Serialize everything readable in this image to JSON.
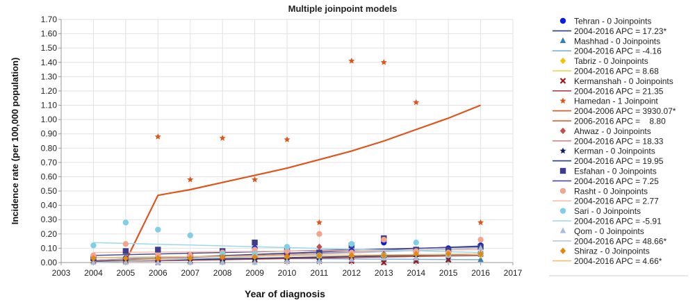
{
  "chart_data": {
    "type": "scatter",
    "title": "Multiple joinpoint models",
    "xlabel": "Year of diagnosis",
    "ylabel": "Incidence rate (per 100,000 population)",
    "xlim": [
      2003,
      2017
    ],
    "ylim": [
      0,
      1.7
    ],
    "x_ticks": [
      2003,
      2004,
      2005,
      2006,
      2007,
      2008,
      2009,
      2010,
      2011,
      2012,
      2013,
      2014,
      2015,
      2016,
      2017
    ],
    "y_ticks": [
      "0.00",
      "0.10",
      "0.20",
      "0.30",
      "0.40",
      "0.50",
      "0.60",
      "0.70",
      "0.80",
      "0.90",
      "1.00",
      "1.10",
      "1.20",
      "1.30",
      "1.40",
      "1.50",
      "1.60",
      "1.70"
    ],
    "grid": true,
    "legend_position": "right",
    "series": [
      {
        "name": "Tehran - 0 Joinpoints",
        "marker": "circle",
        "color": "#0a1fd6",
        "points": [
          [
            2004,
            0.02
          ],
          [
            2005,
            0.03
          ],
          [
            2006,
            0.03
          ],
          [
            2007,
            0.04
          ],
          [
            2008,
            0.05
          ],
          [
            2009,
            0.1
          ],
          [
            2010,
            0.06
          ],
          [
            2011,
            0.07
          ],
          [
            2012,
            0.08
          ],
          [
            2013,
            0.14
          ],
          [
            2014,
            0.09
          ],
          [
            2015,
            0.1
          ],
          [
            2016,
            0.12
          ]
        ],
        "fit": {
          "label": "2004-2016 APC = 17.23*",
          "color": "#2c3a8c",
          "segments": [
            [
              [
                2004,
                0.015
              ],
              [
                2016,
                0.115
              ]
            ]
          ]
        }
      },
      {
        "name": "Mashhad - 0 Joinpoints",
        "marker": "triangle",
        "color": "#3a7fb0",
        "points": [
          [
            2004,
            0.04
          ],
          [
            2005,
            0.03
          ],
          [
            2006,
            0.03
          ],
          [
            2007,
            0.03
          ],
          [
            2008,
            0.02
          ],
          [
            2009,
            0.03
          ],
          [
            2010,
            0.02
          ],
          [
            2011,
            0.02
          ],
          [
            2012,
            0.02
          ],
          [
            2013,
            0.02
          ],
          [
            2014,
            0.02
          ],
          [
            2015,
            0.02
          ],
          [
            2016,
            0.02
          ]
        ],
        "fit": {
          "label": "2004-2016 APC = -4.16",
          "color": "#7fb0d6",
          "segments": [
            [
              [
                2004,
                0.035
              ],
              [
                2016,
                0.02
              ]
            ]
          ]
        }
      },
      {
        "name": "Tabriz - 0 Joinpoints",
        "marker": "diamond",
        "color": "#f2c400",
        "points": [
          [
            2004,
            0.01
          ],
          [
            2005,
            0.02
          ],
          [
            2006,
            0.02
          ],
          [
            2007,
            0.02
          ],
          [
            2008,
            0.03
          ],
          [
            2009,
            0.03
          ],
          [
            2010,
            0.03
          ],
          [
            2011,
            0.03
          ],
          [
            2012,
            0.04
          ],
          [
            2013,
            0.04
          ],
          [
            2014,
            0.05
          ],
          [
            2015,
            0.05
          ],
          [
            2016,
            0.05
          ]
        ],
        "fit": {
          "label": "2004-2016 APC = 8.68",
          "color": "#f2d040",
          "segments": [
            [
              [
                2004,
                0.015
              ],
              [
                2016,
                0.05
              ]
            ]
          ]
        }
      },
      {
        "name": "Kermanshah - 0 Joinpoints",
        "marker": "x",
        "color": "#a0161c",
        "points": [
          [
            2004,
            0.01
          ],
          [
            2005,
            0.01
          ],
          [
            2006,
            0.0
          ],
          [
            2007,
            0.01
          ],
          [
            2008,
            0.01
          ],
          [
            2009,
            0.02
          ],
          [
            2010,
            0.01
          ],
          [
            2011,
            0.01
          ],
          [
            2012,
            0.01
          ],
          [
            2013,
            0.0
          ],
          [
            2014,
            0.01
          ],
          [
            2015,
            0.02
          ],
          [
            2016,
            0.06
          ]
        ],
        "fit": {
          "label": "2004-2016 APC = 21.35",
          "color": "#b0404a",
          "segments": [
            [
              [
                2004,
                0.005
              ],
              [
                2016,
                0.05
              ]
            ]
          ]
        }
      },
      {
        "name": "Hamedan - 1 Joinpoint",
        "marker": "star",
        "color": "#e0541a",
        "points": [
          [
            2004,
            0.01
          ],
          [
            2005,
            0.01
          ],
          [
            2006,
            0.88
          ],
          [
            2007,
            0.58
          ],
          [
            2008,
            0.87
          ],
          [
            2009,
            0.58
          ],
          [
            2010,
            0.86
          ],
          [
            2011,
            0.28
          ],
          [
            2012,
            1.41
          ],
          [
            2013,
            1.4
          ],
          [
            2014,
            1.12
          ],
          [
            2016,
            0.28
          ]
        ],
        "fit": {
          "label": "2004-2006 APC = 3930.07*",
          "label2": "2006-2016 APC =    8.80",
          "color": "#e0541a",
          "segments": [
            [
              [
                2004,
                0.01
              ],
              [
                2005,
                0.01
              ],
              [
                2006,
                0.47
              ],
              [
                2007,
                0.51
              ],
              [
                2008,
                0.56
              ],
              [
                2009,
                0.61
              ],
              [
                2010,
                0.66
              ],
              [
                2011,
                0.72
              ],
              [
                2012,
                0.78
              ],
              [
                2013,
                0.85
              ],
              [
                2014,
                0.93
              ],
              [
                2015,
                1.01
              ],
              [
                2016,
                1.1
              ]
            ]
          ]
        }
      },
      {
        "name": "Ahwaz - 0 Joinpoints",
        "marker": "diamond",
        "color": "#c0504d",
        "points": [
          [
            2004,
            0.02
          ],
          [
            2005,
            0.01
          ],
          [
            2006,
            0.03
          ],
          [
            2007,
            0.03
          ],
          [
            2008,
            0.03
          ],
          [
            2009,
            0.04
          ],
          [
            2010,
            0.05
          ],
          [
            2011,
            0.11
          ],
          [
            2012,
            0.05
          ],
          [
            2013,
            0.06
          ],
          [
            2014,
            0.06
          ],
          [
            2015,
            0.07
          ],
          [
            2016,
            0.1
          ]
        ],
        "fit": {
          "label": "2004-2016 APC = 18.33",
          "color": "#c98a88",
          "segments": [
            [
              [
                2004,
                0.015
              ],
              [
                2016,
                0.1
              ]
            ]
          ]
        }
      },
      {
        "name": "Kerman - 0 Joinpoints",
        "marker": "star",
        "color": "#0d1a66",
        "points": [
          [
            2004,
            0.01
          ],
          [
            2005,
            0.01
          ],
          [
            2006,
            0.0
          ],
          [
            2007,
            0.01
          ],
          [
            2008,
            0.01
          ],
          [
            2009,
            0.02
          ],
          [
            2010,
            0.02
          ],
          [
            2011,
            0.02
          ],
          [
            2012,
            0.03
          ],
          [
            2013,
            0.03
          ],
          [
            2014,
            0.04
          ],
          [
            2015,
            0.04
          ],
          [
            2016,
            0.06
          ]
        ],
        "fit": {
          "label": "2004-2016 APC = 19.95",
          "color": "#2a3a7a",
          "segments": [
            [
              [
                2004,
                0.008
              ],
              [
                2016,
                0.06
              ]
            ]
          ]
        }
      },
      {
        "name": "Esfahan - 0 Joinpoints",
        "marker": "square",
        "color": "#3d3d8c",
        "points": [
          [
            2004,
            0.03
          ],
          [
            2005,
            0.08
          ],
          [
            2006,
            0.09
          ],
          [
            2007,
            0.05
          ],
          [
            2008,
            0.08
          ],
          [
            2009,
            0.14
          ],
          [
            2010,
            0.08
          ],
          [
            2011,
            0.07
          ],
          [
            2012,
            0.12
          ],
          [
            2013,
            0.17
          ],
          [
            2014,
            0.09
          ],
          [
            2015,
            0.09
          ],
          [
            2016,
            0.11
          ]
        ],
        "fit": {
          "label": "2004-2016 APC = 7.25",
          "color": "#4a4a9a",
          "segments": [
            [
              [
                2004,
                0.05
              ],
              [
                2016,
                0.11
              ]
            ]
          ]
        }
      },
      {
        "name": "Rasht - 0 Joinpoints",
        "marker": "circle",
        "color": "#f4a38c",
        "points": [
          [
            2004,
            0.05
          ],
          [
            2005,
            0.13
          ],
          [
            2006,
            0.05
          ],
          [
            2007,
            0.05
          ],
          [
            2008,
            0.07
          ],
          [
            2009,
            0.09
          ],
          [
            2010,
            0.08
          ],
          [
            2011,
            0.2
          ],
          [
            2012,
            0.07
          ],
          [
            2013,
            0.16
          ],
          [
            2014,
            0.08
          ],
          [
            2015,
            0.07
          ],
          [
            2016,
            0.16
          ]
        ],
        "fit": {
          "label": "2004-2016 APC = 2.77",
          "color": "#f7c0ad",
          "segments": [
            [
              [
                2004,
                0.07
              ],
              [
                2016,
                0.09
              ]
            ]
          ]
        }
      },
      {
        "name": "Sari - 0 Joinpoints",
        "marker": "circle",
        "color": "#7fd0e6",
        "points": [
          [
            2004,
            0.12
          ],
          [
            2005,
            0.28
          ],
          [
            2006,
            0.23
          ],
          [
            2007,
            0.19
          ],
          [
            2008,
            0.06
          ],
          [
            2009,
            0.06
          ],
          [
            2010,
            0.11
          ],
          [
            2011,
            0.05
          ],
          [
            2012,
            0.13
          ],
          [
            2013,
            0.05
          ],
          [
            2014,
            0.14
          ],
          [
            2015,
            0.05
          ],
          [
            2016,
            0.06
          ]
        ],
        "fit": {
          "label": "2004-2016 APC = -5.91",
          "color": "#9ad9eb",
          "segments": [
            [
              [
                2004,
                0.14
              ],
              [
                2016,
                0.07
              ]
            ]
          ]
        }
      },
      {
        "name": "Qom - 0 Joinpoints",
        "marker": "triangle",
        "color": "#a9bcd6",
        "points": [
          [
            2004,
            0.0
          ],
          [
            2005,
            0.0
          ],
          [
            2006,
            0.0
          ],
          [
            2007,
            0.0
          ],
          [
            2008,
            0.0
          ],
          [
            2009,
            0.0
          ],
          [
            2010,
            0.01
          ],
          [
            2011,
            0.01
          ],
          [
            2012,
            0.02
          ],
          [
            2013,
            0.03
          ],
          [
            2014,
            0.03
          ],
          [
            2015,
            0.05
          ],
          [
            2016,
            0.1
          ]
        ],
        "fit": {
          "label": "2004-2016 APC = 48.66*",
          "color": "#b9c8dc",
          "segments": [
            [
              [
                2004,
                0.001
              ],
              [
                2016,
                0.1
              ]
            ]
          ]
        }
      },
      {
        "name": "Shiraz - 0 Joinpoints",
        "marker": "diamond",
        "color": "#e08a10",
        "points": [
          [
            2004,
            0.03
          ],
          [
            2005,
            0.03
          ],
          [
            2006,
            0.03
          ],
          [
            2007,
            0.03
          ],
          [
            2008,
            0.04
          ],
          [
            2009,
            0.04
          ],
          [
            2010,
            0.04
          ],
          [
            2011,
            0.05
          ],
          [
            2012,
            0.05
          ],
          [
            2013,
            0.05
          ],
          [
            2014,
            0.06
          ],
          [
            2015,
            0.06
          ],
          [
            2016,
            0.06
          ]
        ],
        "fit": {
          "label": "2004-2016 APC = 4.66*",
          "color": "#f0c070",
          "segments": [
            [
              [
                2004,
                0.035
              ],
              [
                2016,
                0.06
              ]
            ]
          ]
        }
      }
    ]
  }
}
